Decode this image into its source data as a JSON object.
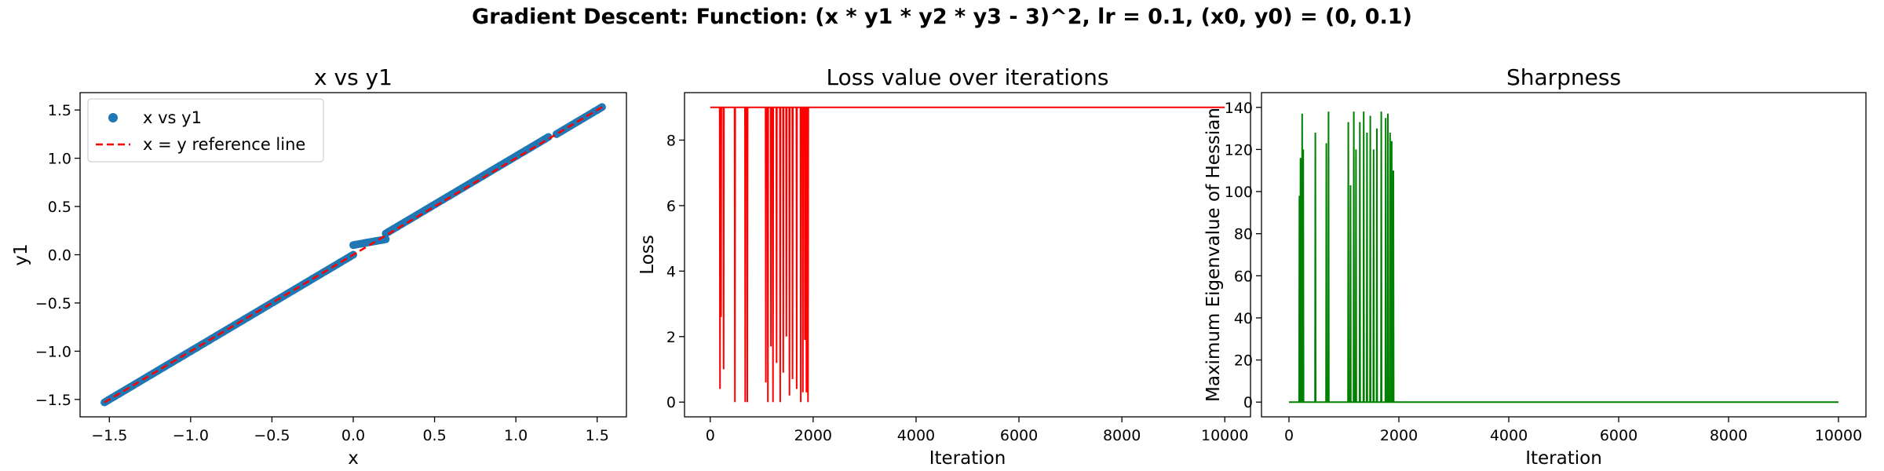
{
  "figure": {
    "suptitle": "Gradient Descent: Function: (x * y1 * y2 * y3 - 3)^2, lr = 0.1, (x0, y0) = (0, 0.1)"
  },
  "chart_data": [
    {
      "type": "scatter",
      "title": "x vs y1",
      "xlabel": "x",
      "ylabel": "y1",
      "xlim": [
        -1.68,
        1.68
      ],
      "ylim": [
        -1.68,
        1.68
      ],
      "xticks": [
        -1.5,
        -1.0,
        -0.5,
        0.0,
        0.5,
        1.0,
        1.5
      ],
      "xtick_labels": [
        "−1.5",
        "−1.0",
        "−0.5",
        "0.0",
        "0.5",
        "1.0",
        "1.5"
      ],
      "yticks": [
        -1.5,
        -1.0,
        -0.5,
        0.0,
        0.5,
        1.0,
        1.5
      ],
      "ytick_labels": [
        "−1.5",
        "−1.0",
        "−0.5",
        "0.0",
        "0.5",
        "1.0",
        "1.5"
      ],
      "legend_position": "upper-left",
      "series": [
        {
          "name": "x vs y1",
          "kind": "scatter",
          "color": "#1f77b4",
          "segments": [
            {
              "x_range": [
                -1.53,
                -0.08
              ],
              "slope": 1.0,
              "offset": 0.0
            },
            {
              "x_range": [
                -0.08,
                0.0
              ],
              "slope": 1.0,
              "offset": 0.0
            },
            {
              "x_range": [
                0.0,
                0.2
              ],
              "slope": 0.3,
              "offset": 0.1
            },
            {
              "x_range": [
                0.2,
                1.2
              ],
              "slope": 1.0,
              "offset": 0.02
            },
            {
              "x_range": [
                1.25,
                1.53
              ],
              "slope": 1.0,
              "offset": 0.0
            }
          ]
        },
        {
          "name": "x = y reference line",
          "kind": "line",
          "style": "dashed",
          "color": "#ff0000",
          "x": [
            -1.53,
            1.53
          ],
          "y": [
            -1.53,
            1.53
          ]
        }
      ]
    },
    {
      "type": "line",
      "title": "Loss value over iterations",
      "xlabel": "Iteration",
      "ylabel": "Loss",
      "xlim": [
        -500,
        10500
      ],
      "ylim": [
        -0.45,
        9.45
      ],
      "xticks": [
        0,
        2000,
        4000,
        6000,
        8000,
        10000
      ],
      "xtick_labels": [
        "0",
        "2000",
        "4000",
        "6000",
        "8000",
        "10000"
      ],
      "yticks": [
        0,
        2,
        4,
        6,
        8
      ],
      "ytick_labels": [
        "0",
        "2",
        "4",
        "6",
        "8"
      ],
      "series": [
        {
          "name": "",
          "color": "#ff0000",
          "baseline": 9.0,
          "spikes": [
            {
              "x": 190,
              "y": 0.4
            },
            {
              "x": 210,
              "y": 2.6
            },
            {
              "x": 260,
              "y": 1.0
            },
            {
              "x": 480,
              "y": 0.0
            },
            {
              "x": 680,
              "y": 0.0
            },
            {
              "x": 720,
              "y": 0.0
            },
            {
              "x": 1080,
              "y": 0.6
            },
            {
              "x": 1120,
              "y": 0.0
            },
            {
              "x": 1180,
              "y": 1.7
            },
            {
              "x": 1220,
              "y": 0.0
            },
            {
              "x": 1290,
              "y": 1.2
            },
            {
              "x": 1360,
              "y": 0.0
            },
            {
              "x": 1420,
              "y": 0.9
            },
            {
              "x": 1480,
              "y": 2.0
            },
            {
              "x": 1540,
              "y": 0.2
            },
            {
              "x": 1600,
              "y": 0.7
            },
            {
              "x": 1680,
              "y": 0.4
            },
            {
              "x": 1760,
              "y": 0.0
            },
            {
              "x": 1800,
              "y": 0.3
            },
            {
              "x": 1840,
              "y": 1.9
            },
            {
              "x": 1870,
              "y": 0.3
            },
            {
              "x": 1900,
              "y": 0.0
            }
          ],
          "x_end": 10000
        }
      ]
    },
    {
      "type": "line",
      "title": "Sharpness",
      "xlabel": "Iteration",
      "ylabel": "Maximum Eigenvalue of Hessian",
      "xlim": [
        -500,
        10500
      ],
      "ylim": [
        -7,
        147
      ],
      "xticks": [
        0,
        2000,
        4000,
        6000,
        8000,
        10000
      ],
      "xtick_labels": [
        "0",
        "2000",
        "4000",
        "6000",
        "8000",
        "10000"
      ],
      "yticks": [
        0,
        20,
        40,
        60,
        80,
        100,
        120,
        140
      ],
      "ytick_labels": [
        "0",
        "20",
        "40",
        "60",
        "80",
        "100",
        "120",
        "140"
      ],
      "series": [
        {
          "name": "",
          "color": "#008000",
          "baseline": 0.0,
          "spikes": [
            {
              "x": 190,
              "y": 98
            },
            {
              "x": 210,
              "y": 116
            },
            {
              "x": 240,
              "y": 137
            },
            {
              "x": 260,
              "y": 120
            },
            {
              "x": 480,
              "y": 128
            },
            {
              "x": 680,
              "y": 123
            },
            {
              "x": 720,
              "y": 138
            },
            {
              "x": 1080,
              "y": 133
            },
            {
              "x": 1120,
              "y": 103
            },
            {
              "x": 1180,
              "y": 138
            },
            {
              "x": 1220,
              "y": 120
            },
            {
              "x": 1290,
              "y": 133
            },
            {
              "x": 1360,
              "y": 138
            },
            {
              "x": 1420,
              "y": 128
            },
            {
              "x": 1480,
              "y": 136
            },
            {
              "x": 1540,
              "y": 120
            },
            {
              "x": 1600,
              "y": 130
            },
            {
              "x": 1680,
              "y": 138
            },
            {
              "x": 1760,
              "y": 135
            },
            {
              "x": 1800,
              "y": 137
            },
            {
              "x": 1840,
              "y": 128
            },
            {
              "x": 1870,
              "y": 124
            },
            {
              "x": 1900,
              "y": 110
            }
          ],
          "x_end": 10000
        }
      ]
    }
  ]
}
